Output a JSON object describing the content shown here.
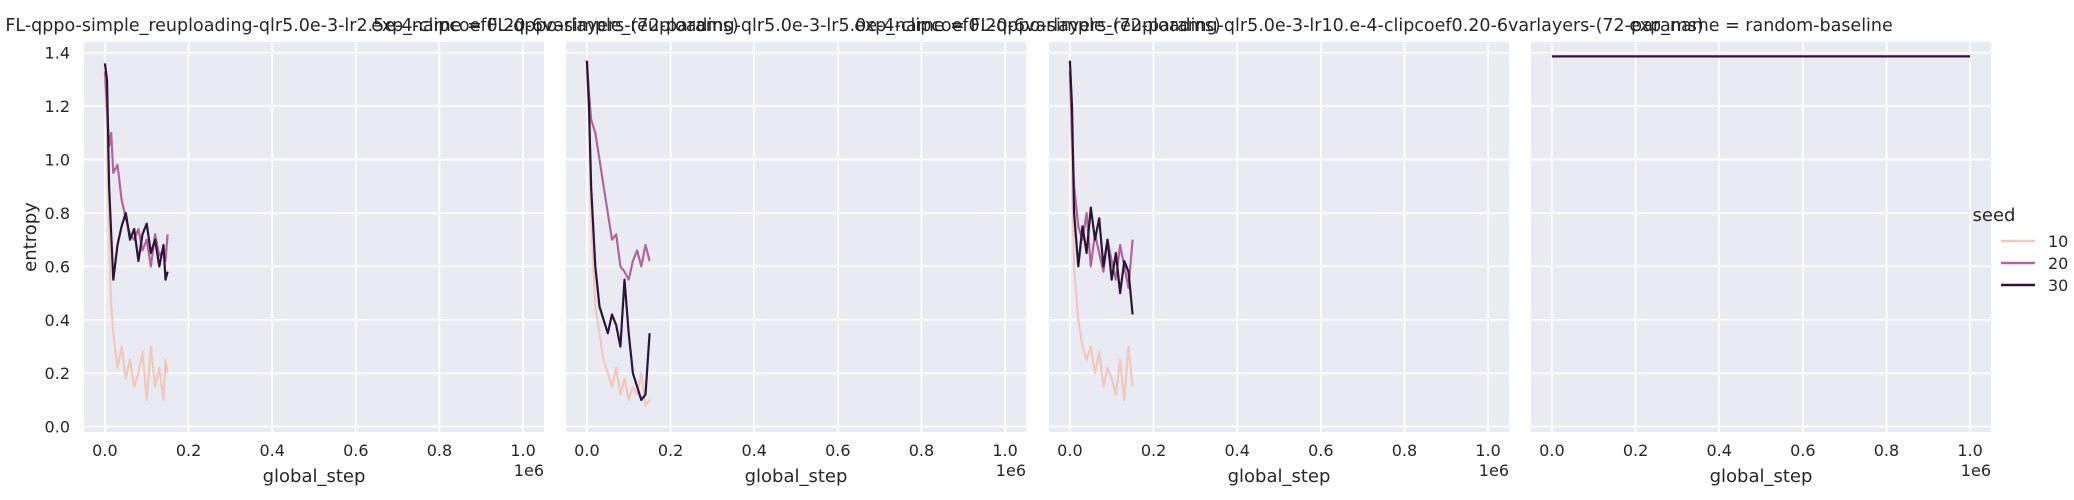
{
  "chart_data": {
    "type": "line",
    "facet_variable": "exp_name",
    "x_axis": {
      "label": "global_step",
      "offset_label": "1e6",
      "ticks": [
        0,
        0.2,
        0.4,
        0.6,
        0.8,
        1.0
      ],
      "tick_labels": [
        "0.0",
        "0.2",
        "0.4",
        "0.6",
        "0.8",
        "1.0"
      ],
      "range": [
        -0.05,
        1.05
      ]
    },
    "y_axis": {
      "label": "entropy",
      "ticks": [
        0,
        0.2,
        0.4,
        0.6,
        0.8,
        1.0,
        1.2,
        1.4
      ],
      "tick_labels": [
        "0.0",
        "0.2",
        "0.4",
        "0.6",
        "0.8",
        "1.0",
        "1.2",
        "1.4"
      ],
      "range": [
        -0.02,
        1.44
      ]
    },
    "grid": true,
    "legend": {
      "title": "seed",
      "placement": "right",
      "entries": [
        {
          "label": "10",
          "color": "#efc9bf"
        },
        {
          "label": "20",
          "color": "#b0669a"
        },
        {
          "label": "30",
          "color": "#2b1637"
        }
      ]
    },
    "panels": [
      {
        "title": "exp_name = FL-qppo-simple_reuploading-qlr5.0e-3-lr2.5e-4-clipcoef0.20-6varlayers-(72-params)",
        "series": [
          {
            "name": "10",
            "color": "#efc9bf",
            "x": [
              0.0,
              0.005,
              0.01,
              0.015,
              0.02,
              0.03,
              0.04,
              0.05,
              0.06,
              0.07,
              0.08,
              0.09,
              0.1,
              0.11,
              0.12,
              0.13,
              0.14,
              0.145,
              0.15
            ],
            "y": [
              1.3,
              1.1,
              0.7,
              0.45,
              0.35,
              0.22,
              0.3,
              0.18,
              0.25,
              0.15,
              0.2,
              0.28,
              0.1,
              0.3,
              0.15,
              0.22,
              0.1,
              0.25,
              0.2
            ]
          },
          {
            "name": "20",
            "color": "#b0669a",
            "x": [
              0.0,
              0.005,
              0.01,
              0.015,
              0.02,
              0.03,
              0.04,
              0.05,
              0.06,
              0.07,
              0.08,
              0.09,
              0.1,
              0.11,
              0.12,
              0.13,
              0.14,
              0.145,
              0.15
            ],
            "y": [
              1.33,
              1.2,
              1.05,
              1.1,
              0.95,
              0.98,
              0.85,
              0.78,
              0.72,
              0.7,
              0.74,
              0.66,
              0.7,
              0.6,
              0.72,
              0.64,
              0.66,
              0.62,
              0.72
            ]
          },
          {
            "name": "30",
            "color": "#2b1637",
            "x": [
              0.0,
              0.005,
              0.01,
              0.015,
              0.02,
              0.03,
              0.04,
              0.05,
              0.06,
              0.07,
              0.08,
              0.09,
              0.1,
              0.11,
              0.12,
              0.13,
              0.14,
              0.145,
              0.15
            ],
            "y": [
              1.36,
              1.3,
              0.9,
              0.72,
              0.55,
              0.68,
              0.75,
              0.8,
              0.7,
              0.74,
              0.62,
              0.72,
              0.76,
              0.65,
              0.7,
              0.6,
              0.68,
              0.55,
              0.58
            ]
          }
        ]
      },
      {
        "title": "exp_name = FL-qppo-simple_reuploading-qlr5.0e-3-lr5.0e-4-clipcoef0.20-6varlayers-(72-params)",
        "series": [
          {
            "name": "10",
            "color": "#efc9bf",
            "x": [
              0.0,
              0.005,
              0.01,
              0.02,
              0.03,
              0.04,
              0.05,
              0.06,
              0.07,
              0.08,
              0.09,
              0.1,
              0.11,
              0.12,
              0.13,
              0.14,
              0.15
            ],
            "y": [
              1.35,
              1.15,
              0.8,
              0.45,
              0.35,
              0.25,
              0.2,
              0.15,
              0.22,
              0.12,
              0.18,
              0.1,
              0.15,
              0.12,
              0.2,
              0.08,
              0.1
            ]
          },
          {
            "name": "20",
            "color": "#b0669a",
            "x": [
              0.0,
              0.005,
              0.01,
              0.02,
              0.03,
              0.04,
              0.05,
              0.06,
              0.07,
              0.08,
              0.09,
              0.1,
              0.11,
              0.12,
              0.13,
              0.14,
              0.15
            ],
            "y": [
              1.37,
              1.25,
              1.15,
              1.1,
              1.0,
              0.9,
              0.8,
              0.7,
              0.72,
              0.6,
              0.58,
              0.55,
              0.62,
              0.66,
              0.6,
              0.68,
              0.62
            ]
          },
          {
            "name": "30",
            "color": "#2b1637",
            "x": [
              0.0,
              0.005,
              0.01,
              0.02,
              0.03,
              0.04,
              0.05,
              0.06,
              0.07,
              0.08,
              0.09,
              0.1,
              0.11,
              0.12,
              0.13,
              0.14,
              0.15
            ],
            "y": [
              1.37,
              1.2,
              0.9,
              0.6,
              0.45,
              0.4,
              0.35,
              0.42,
              0.38,
              0.3,
              0.55,
              0.35,
              0.2,
              0.15,
              0.1,
              0.12,
              0.35
            ]
          }
        ]
      },
      {
        "title": "exp_name = FL-qppo-simple_reuploading-qlr5.0e-3-lr10.e-4-clipcoef0.20-6varlayers-(72-params)",
        "series": [
          {
            "name": "10",
            "color": "#efc9bf",
            "x": [
              0.0,
              0.005,
              0.01,
              0.02,
              0.03,
              0.04,
              0.05,
              0.06,
              0.07,
              0.08,
              0.09,
              0.1,
              0.11,
              0.12,
              0.13,
              0.14,
              0.15
            ],
            "y": [
              1.3,
              1.0,
              0.6,
              0.4,
              0.3,
              0.25,
              0.3,
              0.2,
              0.28,
              0.15,
              0.22,
              0.18,
              0.12,
              0.25,
              0.1,
              0.3,
              0.15
            ]
          },
          {
            "name": "20",
            "color": "#b0669a",
            "x": [
              0.0,
              0.005,
              0.01,
              0.02,
              0.03,
              0.04,
              0.05,
              0.06,
              0.07,
              0.08,
              0.09,
              0.1,
              0.11,
              0.12,
              0.13,
              0.14,
              0.15
            ],
            "y": [
              1.33,
              1.1,
              0.9,
              0.75,
              0.7,
              0.8,
              0.6,
              0.72,
              0.65,
              0.58,
              0.7,
              0.62,
              0.55,
              0.68,
              0.6,
              0.52,
              0.7
            ]
          },
          {
            "name": "30",
            "color": "#2b1637",
            "x": [
              0.0,
              0.005,
              0.01,
              0.02,
              0.03,
              0.04,
              0.05,
              0.06,
              0.07,
              0.08,
              0.09,
              0.1,
              0.11,
              0.12,
              0.13,
              0.14,
              0.15
            ],
            "y": [
              1.37,
              1.2,
              0.8,
              0.6,
              0.75,
              0.65,
              0.82,
              0.7,
              0.78,
              0.6,
              0.7,
              0.55,
              0.65,
              0.5,
              0.62,
              0.58,
              0.42
            ]
          }
        ]
      },
      {
        "title": "exp_name = random-baseline",
        "series": [
          {
            "name": "30",
            "color": "#2b1637",
            "x": [
              0.0,
              1.0
            ],
            "y": [
              1.386,
              1.386
            ]
          }
        ]
      }
    ]
  }
}
